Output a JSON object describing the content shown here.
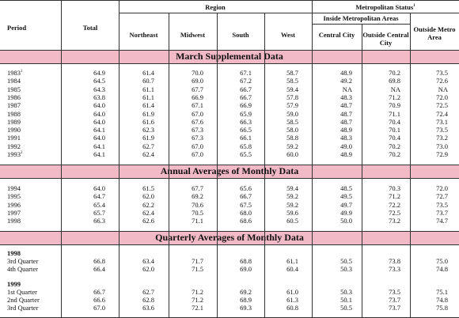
{
  "headers": {
    "period": "Period",
    "total": "Total",
    "region": "Region",
    "northeast": "Northeast",
    "midwest": "Midwest",
    "south": "South",
    "west": "West",
    "metro_status": "Metropolitan Status",
    "metro_status_note": "1",
    "inside_metro": "Inside Metropolitan Areas",
    "central_city": "Central City",
    "outside_central_city": "Outside Central City",
    "outside_metro": "Outside Metro Area"
  },
  "sections": {
    "march": "March Supplemental Data",
    "annual": "Annual Averages of Monthly Data",
    "quarterly": "Quarterly Averages of Monthly Data"
  },
  "march_rows": [
    {
      "period": "1983",
      "note": "1",
      "values": [
        "64.9",
        "61.4",
        "70.0",
        "67.1",
        "58.7",
        "48.9",
        "70.2",
        "73.5"
      ]
    },
    {
      "period": "1984",
      "note": "",
      "values": [
        "64.5",
        "60.7",
        "69.0",
        "67.2",
        "58.5",
        "49.2",
        "69.8",
        "72.6"
      ]
    },
    {
      "period": "1985",
      "note": "",
      "values": [
        "64.3",
        "61.1",
        "67.7",
        "66.7",
        "59.4",
        "NA",
        "NA",
        "NA"
      ]
    },
    {
      "period": "1986",
      "note": "",
      "values": [
        "63.8",
        "61.1",
        "66.9",
        "66.7",
        "57.8",
        "48.3",
        "71.2",
        "72.0"
      ]
    },
    {
      "period": "1987",
      "note": "",
      "values": [
        "64.0",
        "61.4",
        "67.1",
        "66.9",
        "57.9",
        "48.7",
        "70.9",
        "72.5"
      ]
    },
    {
      "period": "1988",
      "note": "",
      "values": [
        "64.0",
        "61.9",
        "67.0",
        "65.9",
        "59.0",
        "48.7",
        "71.1",
        "72.4"
      ]
    },
    {
      "period": "1989",
      "note": "",
      "values": [
        "64.0",
        "61.6",
        "67.6",
        "66.3",
        "58.5",
        "48.7",
        "70.4",
        "73.1"
      ]
    },
    {
      "period": "1990",
      "note": "",
      "values": [
        "64.1",
        "62.3",
        "67.3",
        "66.5",
        "58.0",
        "48.9",
        "70.1",
        "73.5"
      ]
    },
    {
      "period": "1991",
      "note": "",
      "values": [
        "64.0",
        "61.9",
        "67.3",
        "66.1",
        "58.8",
        "48.3",
        "70.4",
        "73.2"
      ]
    },
    {
      "period": "1992",
      "note": "",
      "values": [
        "64.1",
        "62.7",
        "67.0",
        "65.8",
        "59.2",
        "49.0",
        "70.2",
        "73.0"
      ]
    },
    {
      "period": "1993",
      "note": "2",
      "values": [
        "64.1",
        "62.4",
        "67.0",
        "65.5",
        "60.0",
        "48.9",
        "70.2",
        "72.9"
      ]
    }
  ],
  "annual_rows": [
    {
      "period": "1994",
      "values": [
        "64.0",
        "61.5",
        "67.7",
        "65.6",
        "59.4",
        "48.5",
        "70.3",
        "72.0"
      ]
    },
    {
      "period": "1995",
      "values": [
        "64.7",
        "62.0",
        "69.2",
        "66.7",
        "59.2",
        "49.5",
        "71.2",
        "72.7"
      ]
    },
    {
      "period": "1996",
      "values": [
        "65.4",
        "62.2",
        "70.6",
        "67.5",
        "59.2",
        "49.7",
        "72.2",
        "73.5"
      ]
    },
    {
      "period": "1997",
      "values": [
        "65.7",
        "62.4",
        "70.5",
        "68.0",
        "59.6",
        "49.9",
        "72.5",
        "73.7"
      ]
    },
    {
      "period": "1998",
      "values": [
        "66.3",
        "62.6",
        "71.1",
        "68.6",
        "60.5",
        "50.0",
        "73.2",
        "74.7"
      ]
    }
  ],
  "quarterly_groups": [
    {
      "year": "1998",
      "rows": [
        {
          "period": "3rd Quarter",
          "values": [
            "66.8",
            "63.4",
            "71.7",
            "68.8",
            "61.1",
            "50.5",
            "73.8",
            "75.0"
          ]
        },
        {
          "period": "4th Quarter",
          "values": [
            "66.4",
            "62.0",
            "71.5",
            "69.0",
            "60.4",
            "50.3",
            "73.3",
            "74.8"
          ]
        }
      ]
    },
    {
      "year": "1999",
      "rows": [
        {
          "period": "1st Quarter",
          "values": [
            "66.7",
            "62.7",
            "71.2",
            "69.2",
            "61.0",
            "50.3",
            "73.5",
            "75.1"
          ]
        },
        {
          "period": "2nd Quarter",
          "values": [
            "66.6",
            "62.8",
            "71.2",
            "68.9",
            "61.3",
            "50.1",
            "73.7",
            "74.8"
          ]
        },
        {
          "period": "3rd Quarter",
          "values": [
            "67.0",
            "63.6",
            "72.1",
            "69.3",
            "60.8",
            "50.5",
            "73.7",
            "75.8"
          ]
        }
      ]
    }
  ]
}
